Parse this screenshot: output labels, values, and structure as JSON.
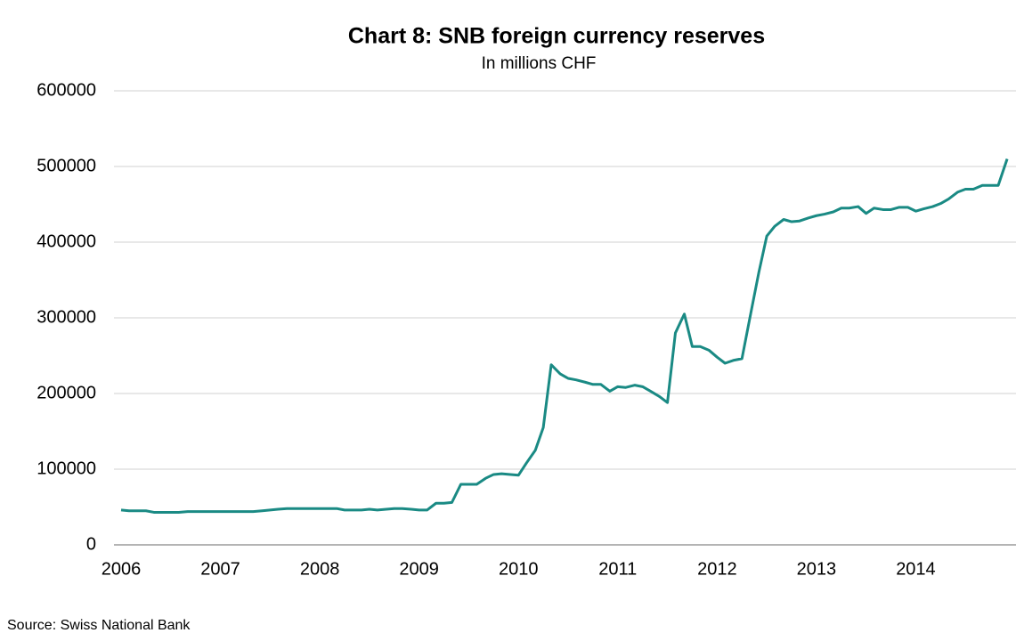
{
  "chart_data": {
    "type": "line",
    "title": "Chart 8: SNB foreign currency reserves",
    "subtitle": "In millions CHF",
    "source": "Source: Swiss National Bank",
    "x": [
      2006.0,
      2006.08,
      2006.17,
      2006.25,
      2006.33,
      2006.42,
      2006.5,
      2006.58,
      2006.67,
      2006.75,
      2006.83,
      2006.92,
      2007.0,
      2007.08,
      2007.17,
      2007.25,
      2007.33,
      2007.42,
      2007.5,
      2007.58,
      2007.67,
      2007.75,
      2007.83,
      2007.92,
      2008.0,
      2008.08,
      2008.17,
      2008.25,
      2008.33,
      2008.42,
      2008.5,
      2008.58,
      2008.67,
      2008.75,
      2008.83,
      2008.92,
      2009.0,
      2009.08,
      2009.17,
      2009.25,
      2009.33,
      2009.42,
      2009.5,
      2009.58,
      2009.67,
      2009.75,
      2009.83,
      2009.92,
      2010.0,
      2010.08,
      2010.17,
      2010.25,
      2010.33,
      2010.42,
      2010.5,
      2010.58,
      2010.67,
      2010.75,
      2010.83,
      2010.92,
      2011.0,
      2011.08,
      2011.17,
      2011.25,
      2011.33,
      2011.42,
      2011.5,
      2011.58,
      2011.67,
      2011.75,
      2011.83,
      2011.92,
      2012.0,
      2012.08,
      2012.17,
      2012.25,
      2012.33,
      2012.42,
      2012.5,
      2012.58,
      2012.67,
      2012.75,
      2012.83,
      2012.92,
      2013.0,
      2013.08,
      2013.17,
      2013.25,
      2013.33,
      2013.42,
      2013.5,
      2013.58,
      2013.67,
      2013.75,
      2013.83,
      2013.92,
      2014.0,
      2014.08,
      2014.17,
      2014.25,
      2014.33,
      2014.42,
      2014.5,
      2014.58,
      2014.67,
      2014.75,
      2014.83,
      2014.92
    ],
    "series": [
      {
        "name": "Foreign currency reserves",
        "color": "#1a8a84",
        "values": [
          46000,
          45000,
          45000,
          45000,
          43000,
          43000,
          43000,
          43000,
          44000,
          44000,
          44000,
          44000,
          44000,
          44000,
          44000,
          44000,
          44000,
          45000,
          46000,
          47000,
          48000,
          48000,
          48000,
          48000,
          48000,
          48000,
          48000,
          46000,
          46000,
          46000,
          47000,
          46000,
          47000,
          48000,
          48000,
          47000,
          46000,
          46000,
          55000,
          55000,
          56000,
          80000,
          80000,
          80000,
          88000,
          93000,
          94000,
          93000,
          92000,
          108000,
          125000,
          155000,
          238000,
          226000,
          220000,
          218000,
          215000,
          212000,
          212000,
          203000,
          209000,
          208000,
          211000,
          209000,
          203000,
          196000,
          188000,
          280000,
          305000,
          262000,
          262000,
          257000,
          248000,
          240000,
          244000,
          246000,
          300000,
          360000,
          408000,
          421000,
          430000,
          427000,
          428000,
          432000,
          435000,
          437000,
          440000,
          445000,
          445000,
          447000,
          438000,
          445000,
          443000,
          443000,
          446000,
          446000,
          441000,
          444000,
          447000,
          451000,
          457000,
          466000,
          470000,
          470000,
          475000,
          475000,
          475000,
          510000
        ]
      }
    ],
    "xlim": [
      2006,
      2015
    ],
    "xticks": [
      2006,
      2007,
      2008,
      2009,
      2010,
      2011,
      2012,
      2013,
      2014
    ],
    "ylim": [
      0,
      600000
    ],
    "yticks": [
      0,
      100000,
      200000,
      300000,
      400000,
      500000,
      600000
    ],
    "grid": true
  }
}
